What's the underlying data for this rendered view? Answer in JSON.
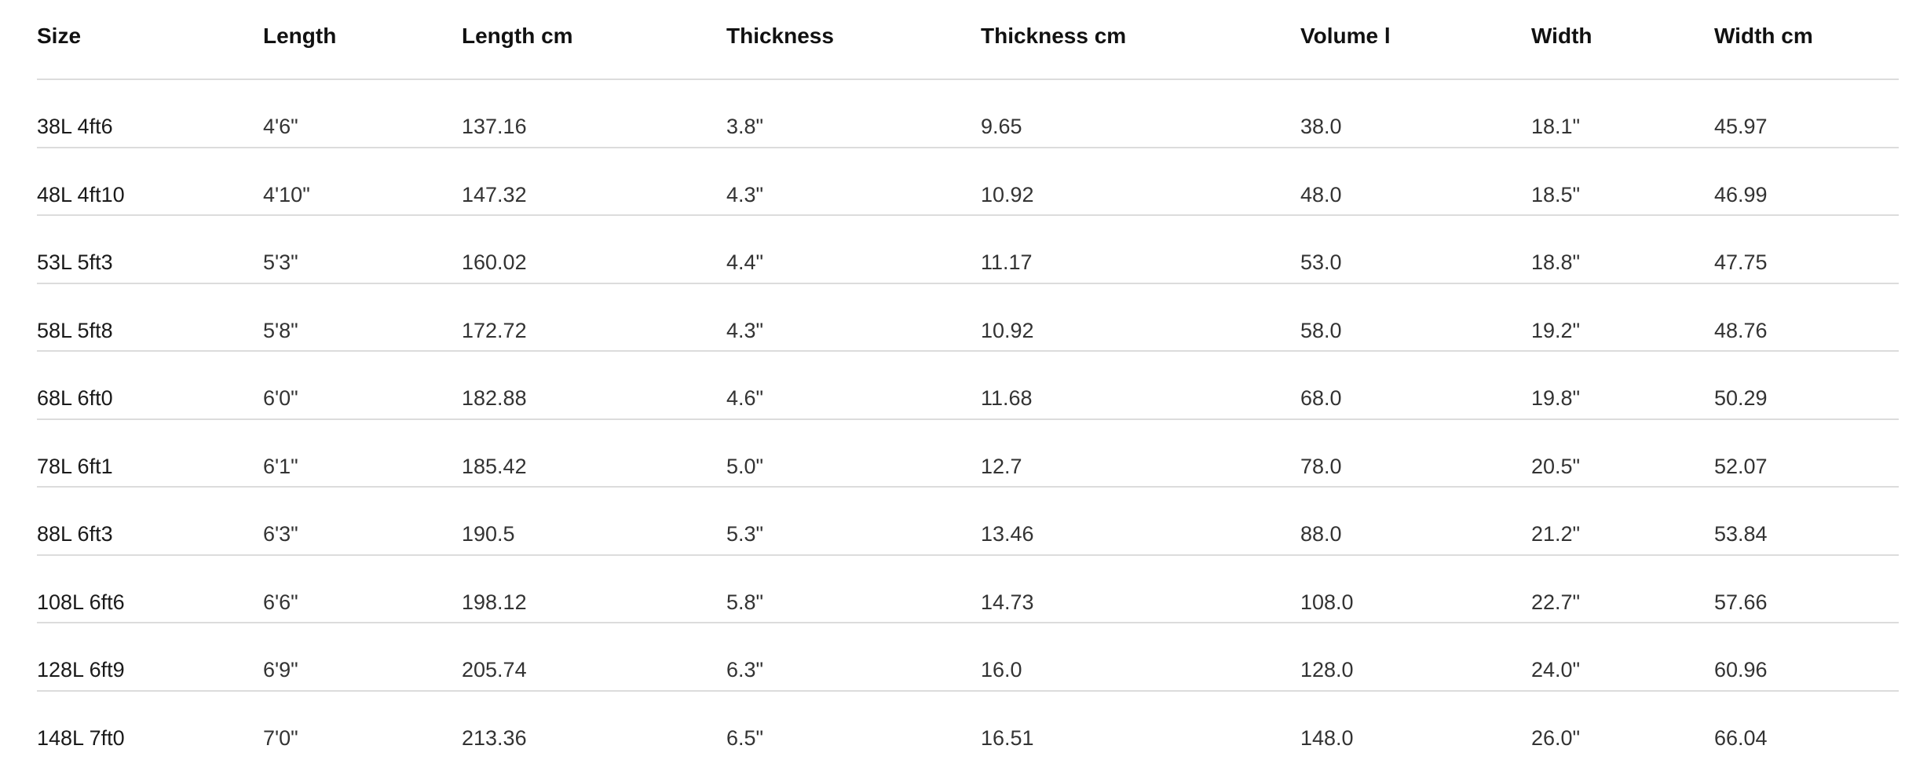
{
  "table": {
    "headers": [
      "Size",
      "Length",
      "Length cm",
      "Thickness",
      "Thickness cm",
      "Volume l",
      "Width",
      "Width cm"
    ],
    "rows": [
      [
        "38L 4ft6",
        "4'6\"",
        "137.16",
        "3.8\"",
        "9.65",
        "38.0",
        "18.1\"",
        "45.97"
      ],
      [
        "48L 4ft10",
        "4'10\"",
        "147.32",
        "4.3\"",
        "10.92",
        "48.0",
        "18.5\"",
        "46.99"
      ],
      [
        "53L 5ft3",
        "5'3\"",
        "160.02",
        "4.4\"",
        "11.17",
        "53.0",
        "18.8\"",
        "47.75"
      ],
      [
        "58L 5ft8",
        "5'8\"",
        "172.72",
        "4.3\"",
        "10.92",
        "58.0",
        "19.2\"",
        "48.76"
      ],
      [
        "68L 6ft0",
        "6'0\"",
        "182.88",
        "4.6\"",
        "11.68",
        "68.0",
        "19.8\"",
        "50.29"
      ],
      [
        "78L 6ft1",
        "6'1\"",
        "185.42",
        "5.0\"",
        "12.7",
        "78.0",
        "20.5\"",
        "52.07"
      ],
      [
        "88L 6ft3",
        "6'3\"",
        "190.5",
        "5.3\"",
        "13.46",
        "88.0",
        "21.2\"",
        "53.84"
      ],
      [
        "108L 6ft6",
        "6'6\"",
        "198.12",
        "5.8\"",
        "14.73",
        "108.0",
        "22.7\"",
        "57.66"
      ],
      [
        "128L 6ft9",
        "6'9\"",
        "205.74",
        "6.3\"",
        "16.0",
        "128.0",
        "24.0\"",
        "60.96"
      ],
      [
        "148L 7ft0",
        "7'0\"",
        "213.36",
        "6.5\"",
        "16.51",
        "148.0",
        "26.0\"",
        "66.04"
      ]
    ]
  }
}
